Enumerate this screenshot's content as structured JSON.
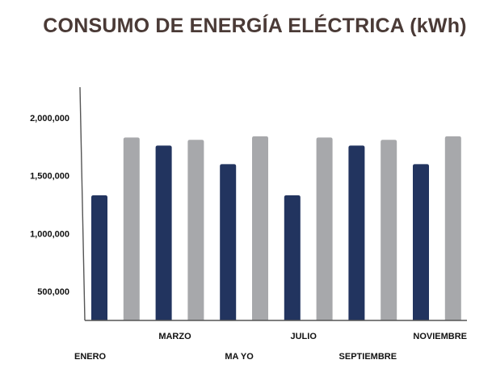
{
  "chart_data": {
    "type": "bar",
    "title": "CONSUMO DE ENERGÍA ELÉCTRICA (kWh)",
    "xlabel": "",
    "ylabel": "",
    "ylim": [
      300000,
      2200000
    ],
    "yticks": [
      500000,
      1000000,
      1500000,
      2000000
    ],
    "ytick_labels": [
      "500,000",
      "1,000,000",
      "1,500,000",
      "2,000,000"
    ],
    "bars": [
      {
        "value": 1330000,
        "color": "#22345f"
      },
      {
        "value": 1830000,
        "color": "#a7a8ab"
      },
      {
        "value": 1760000,
        "color": "#22345f"
      },
      {
        "value": 1810000,
        "color": "#a7a8ab"
      },
      {
        "value": 1600000,
        "color": "#22345f"
      },
      {
        "value": 1840000,
        "color": "#a7a8ab"
      },
      {
        "value": 1330000,
        "color": "#22345f"
      },
      {
        "value": 1830000,
        "color": "#a7a8ab"
      },
      {
        "value": 1760000,
        "color": "#22345f"
      },
      {
        "value": 1810000,
        "color": "#a7a8ab"
      },
      {
        "value": 1600000,
        "color": "#22345f"
      },
      {
        "value": 1840000,
        "color": "#a7a8ab"
      }
    ],
    "category_labels": [
      {
        "text": "ENERO",
        "bar": 0
      },
      {
        "text": "MARZO",
        "bar": 2
      },
      {
        "text": "MA YO",
        "bar": 4
      },
      {
        "text": "JULIO",
        "bar": 6
      },
      {
        "text": "SEPTIEMBRE",
        "bar": 8
      },
      {
        "text": "NOVIEMBRE",
        "bar": 10
      }
    ],
    "grid": false,
    "legend": "none",
    "colors": {
      "dark_bar": "#22345f",
      "light_bar": "#a7a8ab",
      "axis": "#555555",
      "title": "#4a3a36"
    }
  }
}
